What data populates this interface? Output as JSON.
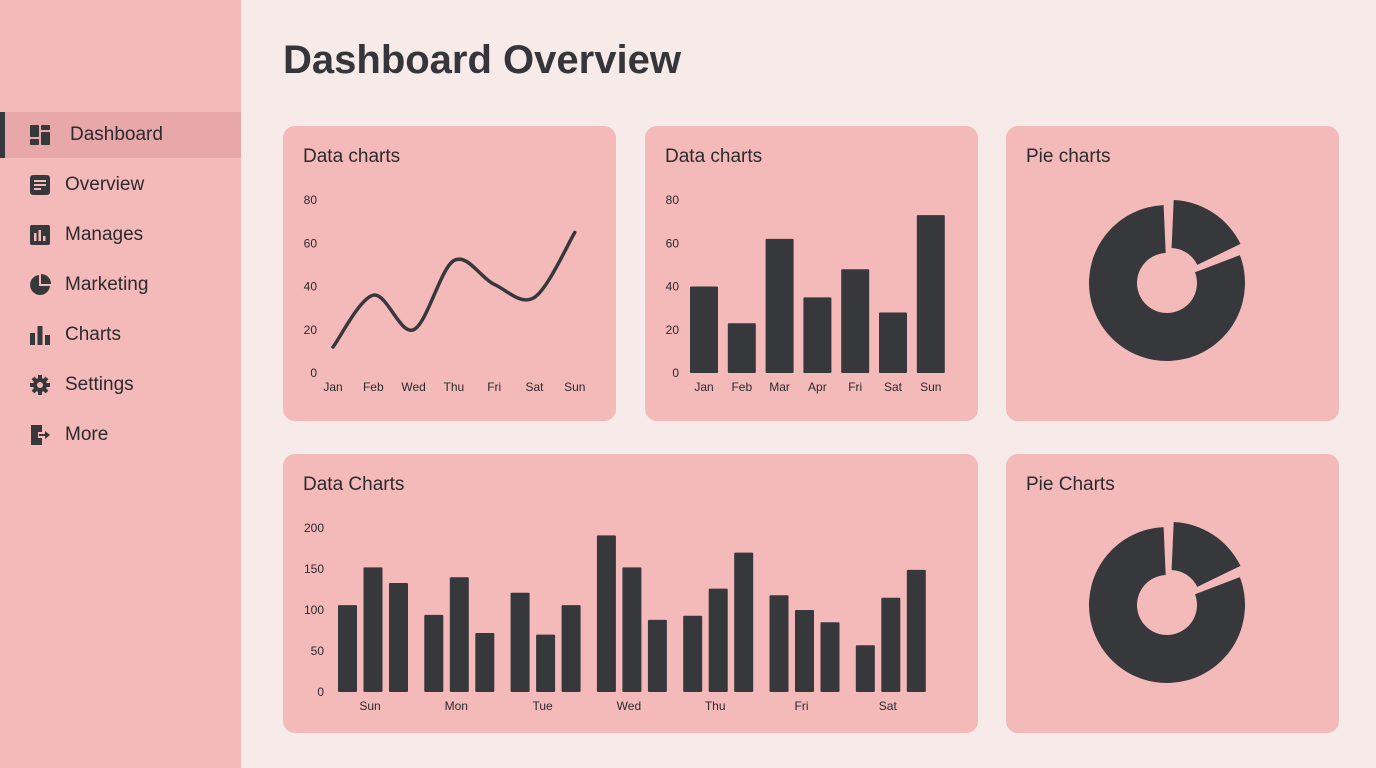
{
  "page_title": "Dashboard Overview",
  "colors": {
    "sidebar": "#f4b9b9",
    "background": "#f7ebea",
    "card": "#f4b9b9",
    "active_item": "#e8a7a8",
    "mark": "#36383c"
  },
  "sidebar": {
    "items": [
      {
        "label": "Dashboard",
        "icon": "dashboard-icon",
        "active": true
      },
      {
        "label": "Overview",
        "icon": "document-icon"
      },
      {
        "label": "Manages",
        "icon": "bar-chart-box-icon"
      },
      {
        "label": "Marketing",
        "icon": "pie-chart-icon"
      },
      {
        "label": "Charts",
        "icon": "bar-chart-icon"
      },
      {
        "label": "Settings",
        "icon": "gear-icon"
      },
      {
        "label": "More",
        "icon": "logout-icon"
      }
    ]
  },
  "cards": {
    "line": "Data charts",
    "bar": "Data charts",
    "pie1": "Pie charts",
    "grouped": "Data Charts",
    "pie2": "Pie Charts"
  },
  "chart_data": [
    {
      "type": "line",
      "title": "Data charts",
      "categories": [
        "Jan",
        "Feb",
        "Wed",
        "Thu",
        "Fri",
        "Sat",
        "Sun"
      ],
      "values": [
        12,
        36,
        20,
        52,
        41,
        35,
        65
      ],
      "yticks": [
        "0",
        "20",
        "40",
        "60",
        "80"
      ],
      "ylim": [
        0,
        80
      ]
    },
    {
      "type": "bar",
      "title": "Data charts",
      "categories": [
        "Jan",
        "Feb",
        "Mar",
        "Apr",
        "Fri",
        "Sat",
        "Sun"
      ],
      "values": [
        40,
        23,
        62,
        35,
        48,
        28,
        73
      ],
      "yticks": [
        "0",
        "20",
        "40",
        "60",
        "80"
      ],
      "ylim": [
        0,
        80
      ]
    },
    {
      "type": "pie",
      "title": "Pie charts",
      "donut": true,
      "values": [
        18.5,
        81.5
      ],
      "exploded": 0
    },
    {
      "type": "bar",
      "title": "Data Charts",
      "categories": [
        "Sun",
        "Mon",
        "Tue",
        "Wed",
        "Thu",
        "Fri",
        "Sat"
      ],
      "series": [
        {
          "values": [
            106,
            94,
            121,
            191,
            93,
            118,
            57
          ]
        },
        {
          "values": [
            152,
            140,
            70,
            152,
            126,
            100,
            115
          ]
        },
        {
          "values": [
            133,
            72,
            106,
            88,
            170,
            85,
            149
          ]
        }
      ],
      "yticks": [
        "0",
        "50",
        "100",
        "150",
        "200"
      ],
      "ylim": [
        0,
        200
      ]
    },
    {
      "type": "pie",
      "title": "Pie Charts",
      "donut": true,
      "values": [
        18.5,
        81.5
      ],
      "exploded": 0
    }
  ]
}
